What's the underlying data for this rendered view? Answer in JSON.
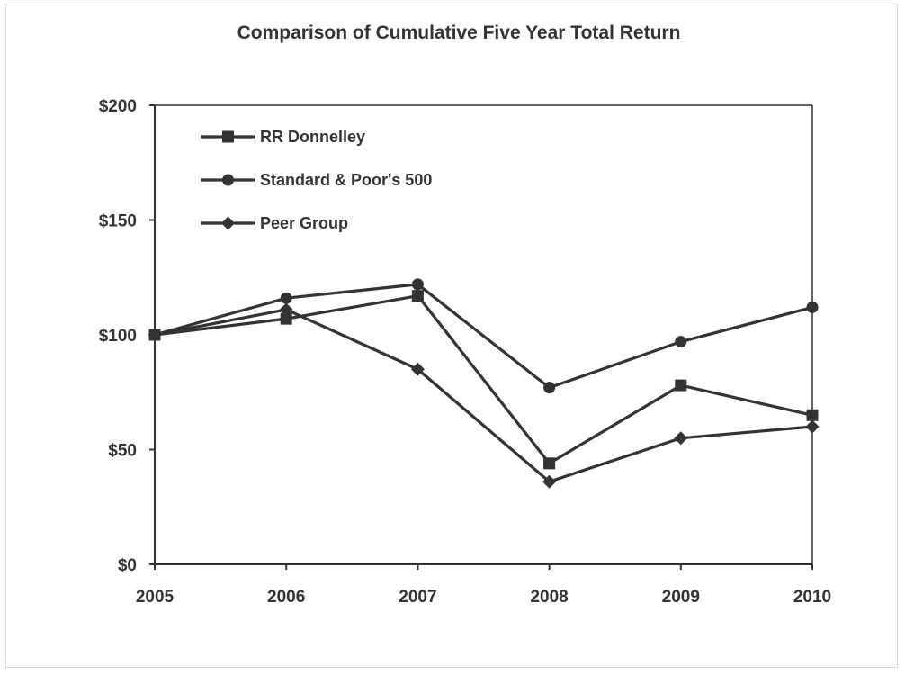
{
  "chart_data": {
    "type": "line",
    "title": "Comparison of Cumulative Five Year Total Return",
    "xlabel": "",
    "ylabel": "",
    "categories": [
      "2005",
      "2006",
      "2007",
      "2008",
      "2009",
      "2010"
    ],
    "y_ticks": [
      "$0",
      "$50",
      "$100",
      "$150",
      "$200"
    ],
    "y_tick_values": [
      0,
      50,
      100,
      150,
      200
    ],
    "ylim": [
      0,
      200
    ],
    "grid": false,
    "legend_position": "top-left",
    "line_color": "#333333",
    "series": [
      {
        "name": "RR Donnelley",
        "marker": "square",
        "values": [
          100,
          107,
          117,
          44,
          78,
          65
        ]
      },
      {
        "name": "Standard & Poor's 500",
        "marker": "circle",
        "values": [
          100,
          116,
          122,
          77,
          97,
          112
        ]
      },
      {
        "name": "Peer Group",
        "marker": "diamond",
        "values": [
          100,
          111,
          85,
          36,
          55,
          60
        ]
      }
    ]
  }
}
